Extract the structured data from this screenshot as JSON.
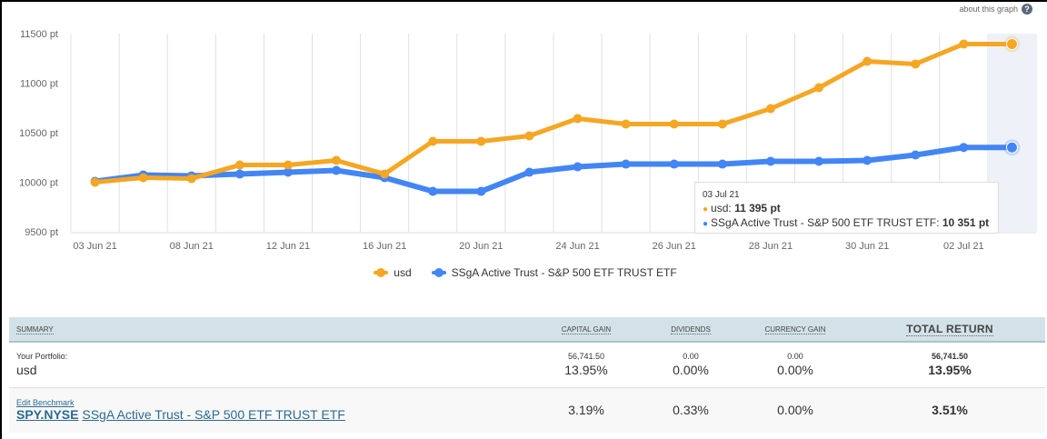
{
  "about_label": "about this graph",
  "about_icon": "help-icon",
  "chart_data": {
    "type": "line",
    "title": "",
    "xlabel": "",
    "ylabel": "",
    "ylim": [
      9500,
      11500
    ],
    "yticks": [
      "11500 pt",
      "11000 pt",
      "10500 pt",
      "10000 pt",
      "9500 pt"
    ],
    "ytick_values": [
      11500,
      11000,
      10500,
      10000,
      9500
    ],
    "xticks": [
      "03 Jun 21",
      "08 Jun 21",
      "12 Jun 21",
      "16 Jun 21",
      "20 Jun 21",
      "24 Jun 21",
      "26 Jun 21",
      "28 Jun 21",
      "30 Jun 21",
      "02 Jul 21"
    ],
    "xtick_index": [
      0,
      2,
      4,
      6,
      8,
      10,
      12,
      14,
      16,
      18
    ],
    "n_points": 20,
    "grid": true,
    "legend": "bottom-center",
    "series": [
      {
        "name": "usd",
        "color": "#f5a623",
        "values": [
          10000,
          10046,
          10037,
          10174,
          10174,
          10220,
          10083,
          10413,
          10413,
          10468,
          10642,
          10587,
          10587,
          10587,
          10743,
          10954,
          11220,
          11193,
          11395,
          11395
        ]
      },
      {
        "name": "SSgA Active Trust - S&P 500 ETF TRUST ETF",
        "color": "#4285f4",
        "values": [
          10009,
          10073,
          10064,
          10083,
          10101,
          10119,
          10046,
          9908,
          9908,
          10101,
          10156,
          10183,
          10183,
          10183,
          10211,
          10211,
          10220,
          10275,
          10351,
          10351
        ]
      }
    ],
    "highlight_index": 19,
    "tooltip": {
      "date": "03 Jul 21",
      "rows": [
        {
          "label": "usd: ",
          "value": "11 395 pt",
          "color": "#f5a623"
        },
        {
          "label": "SSgA Active Trust - S&P 500 ETF TRUST ETF: ",
          "value": "10 351 pt",
          "color": "#4285f4"
        }
      ]
    }
  },
  "summary": {
    "headers": {
      "summary": "Summary",
      "capital_gain": "Capital Gain",
      "dividends": "Dividends",
      "currency_gain": "Currency Gain",
      "total_return": "Total Return"
    },
    "portfolio": {
      "label": "Your Portfolio:",
      "name": "usd",
      "capital_gain_amount": "56,741.50",
      "capital_gain_pct": "13.95%",
      "dividends_amount": "0.00",
      "dividends_pct": "0.00%",
      "currency_amount": "0.00",
      "currency_pct": "0.00%",
      "total_amount": "56,741.50",
      "total_pct": "13.95%"
    },
    "benchmark": {
      "edit_label": "Edit Benchmark",
      "ticker": "SPY.NYSE",
      "name": "SSgA Active Trust - S&P 500 ETF TRUST ETF",
      "capital_gain_pct": "3.19%",
      "dividends_pct": "0.33%",
      "currency_pct": "0.00%",
      "total_pct": "3.51%"
    }
  }
}
